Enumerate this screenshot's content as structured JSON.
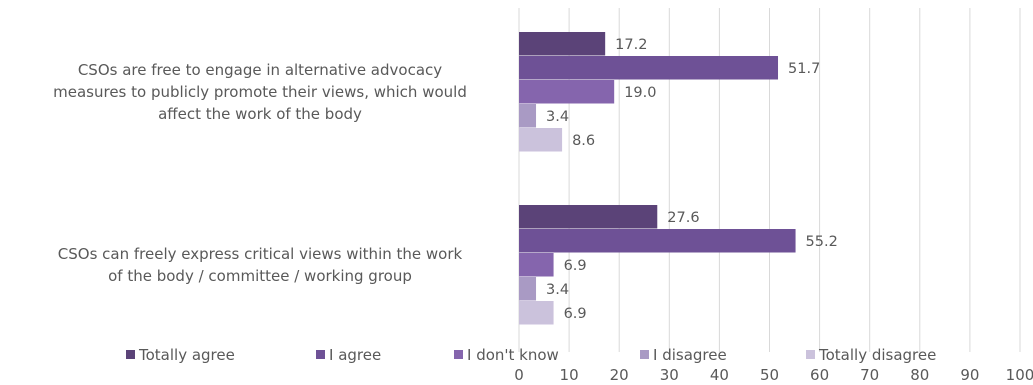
{
  "chart_data": {
    "type": "bar",
    "orientation": "horizontal",
    "categories": [
      "CSOs are free to engage in alternative advocacy measures to publicly promote their views, which would affect the work of the body",
      "CSOs can freely express critical views within the work of the body / committee / working group"
    ],
    "category_lines": [
      [
        "CSOs are free to engage in alternative advocacy",
        "measures to publicly promote their views, which would",
        "affect the work of the body"
      ],
      [
        "CSOs can freely express critical views within the work",
        "of the body / committee / working group"
      ]
    ],
    "series": [
      {
        "name": "Totally agree",
        "color": "#5b4378",
        "values": [
          17.2,
          27.6
        ],
        "labels": [
          "17.2",
          "27.6"
        ]
      },
      {
        "name": "I agree",
        "color": "#6e5196",
        "values": [
          51.7,
          55.2
        ],
        "labels": [
          "51.7",
          "55.2"
        ]
      },
      {
        "name": "I don't know",
        "color": "#8565ad",
        "values": [
          19.0,
          6.9
        ],
        "labels": [
          "19.0",
          "6.9"
        ]
      },
      {
        "name": "I disagree",
        "color": "#a99ac4",
        "values": [
          3.4,
          3.4
        ],
        "labels": [
          "3.4",
          "3.4"
        ]
      },
      {
        "name": "Totally disagree",
        "color": "#cbc2dc",
        "values": [
          8.6,
          6.9
        ],
        "labels": [
          "8.6",
          "6.9"
        ]
      }
    ],
    "xlim": [
      0,
      100
    ],
    "xticks": [
      "0",
      "10",
      "20",
      "30",
      "40",
      "50",
      "60",
      "70",
      "80",
      "90",
      "100"
    ],
    "grid": true,
    "legend_position": "bottom",
    "title": "",
    "xlabel": "",
    "ylabel": ""
  }
}
